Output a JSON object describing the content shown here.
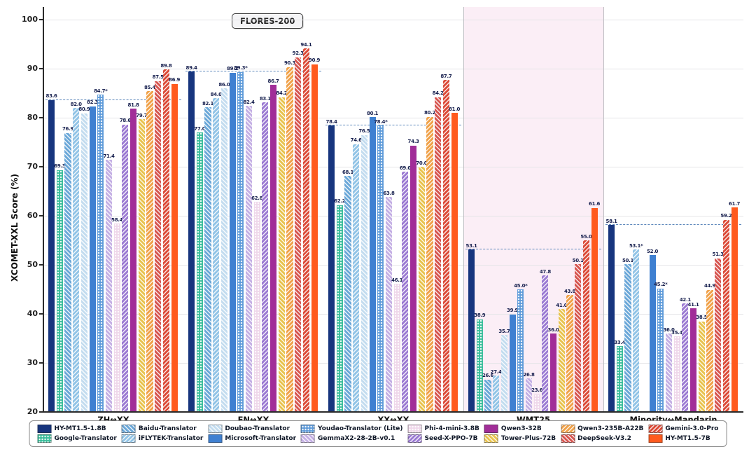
{
  "chart_data": {
    "type": "bar",
    "title": "FLORES-200",
    "ylabel": "XCOMET-XXL Score (%)",
    "ylim": [
      20,
      100
    ],
    "grid": true,
    "legend_position": "bottom",
    "yticks": [
      20,
      30,
      40,
      50,
      60,
      70,
      80,
      90,
      100
    ],
    "categories": [
      "ZH↔XX",
      "EN↔XX",
      "XX↔XX",
      "WMT25",
      "Minority↔Mandarin"
    ],
    "group_backgrounds": [
      "#ffffff",
      "#ffffff",
      "#ffffff",
      "#fbeef6",
      "#ffffff"
    ],
    "reference_values": [
      83.6,
      89.4,
      78.4,
      53.1,
      58.1
    ],
    "series": [
      {
        "name": "HY-MT1.5-1.8B",
        "color": "#17357e",
        "pattern": "solid",
        "values": [
          83.6,
          89.4,
          78.4,
          53.1,
          58.1
        ],
        "labels": [
          "83.6",
          "89.4",
          "78.4",
          "53.1",
          "58.1"
        ]
      },
      {
        "name": "Google-Translator",
        "color": "#3bbd9b",
        "pattern": "dots",
        "values": [
          69.3,
          77.0,
          62.2,
          38.9,
          33.4
        ],
        "labels": [
          "69.3",
          "77.0",
          "62.2",
          "38.9",
          "33.4"
        ]
      },
      {
        "name": "Baidu-Translator",
        "color": "#6aa7d8",
        "pattern": "hatch-f",
        "values": [
          76.9,
          82.1,
          68.1,
          26.6,
          50.1
        ],
        "labels": [
          "76.9",
          "82.1",
          "68.1",
          "26.6",
          "50.1"
        ]
      },
      {
        "name": "iFLYTEK-Translator",
        "color": "#92c4e6",
        "pattern": "hatch-b",
        "values": [
          82.0,
          84.0,
          74.6,
          27.4,
          53.1
        ],
        "labels": [
          "82.0",
          "84.0",
          "74.6",
          "27.4",
          "53.1*"
        ]
      },
      {
        "name": "Doubao-Translator",
        "color": "#c3dcef",
        "pattern": "hatch-f",
        "values": [
          80.9,
          86.0,
          76.5,
          35.7,
          null
        ],
        "labels": [
          "80.9",
          "86.0",
          "76.5",
          "35.7",
          null
        ]
      },
      {
        "name": "Microsoft-Translator",
        "color": "#3f80d1",
        "pattern": "solid",
        "values": [
          82.3,
          89.2,
          80.1,
          39.9,
          52.0
        ],
        "labels": [
          "82.3",
          "89.2",
          "80.1",
          "39.9",
          "52.0"
        ]
      },
      {
        "name": "Youdao-Translator (Lite)",
        "color": "#5f9bd9",
        "pattern": "dots",
        "values": [
          84.7,
          89.3,
          78.4,
          45.0,
          45.2
        ],
        "labels": [
          "84.7*",
          "89.3*",
          "78.4*",
          "45.0*",
          "45.2*"
        ]
      },
      {
        "name": "GemmaX2-28-2B-v0.1",
        "color": "#c4afe4",
        "pattern": "hatch-f",
        "values": [
          71.4,
          82.4,
          63.8,
          26.8,
          36.0
        ],
        "labels": [
          "71.4",
          "82.4",
          "63.8",
          "26.8",
          "36.0"
        ]
      },
      {
        "name": "Phi-4-mini-3.8B",
        "color": "#efd8ea",
        "pattern": "dots",
        "values": [
          58.4,
          62.8,
          46.1,
          23.6,
          35.4
        ],
        "labels": [
          "58.4",
          "62.8",
          "46.1",
          "23.6",
          "35.4"
        ]
      },
      {
        "name": "Seed-X-PPO-7B",
        "color": "#9b7ad2",
        "pattern": "hatch-b",
        "values": [
          78.6,
          83.1,
          69.0,
          47.8,
          42.1
        ],
        "labels": [
          "78.6",
          "83.1",
          "69.0",
          "47.8",
          "42.1"
        ]
      },
      {
        "name": "Qwen3-32B",
        "color": "#a12d98",
        "pattern": "solid",
        "values": [
          81.8,
          86.7,
          74.3,
          36.0,
          41.1
        ],
        "labels": [
          "81.8",
          "86.7",
          "74.3",
          "36.0",
          "41.1"
        ]
      },
      {
        "name": "Tower-Plus-72B",
        "color": "#e8c34e",
        "pattern": "hatch-f",
        "values": [
          79.7,
          84.2,
          70.0,
          41.0,
          38.5
        ],
        "labels": [
          "79.7",
          "84.2",
          "70.0",
          "41.0",
          "38.5"
        ]
      },
      {
        "name": "Qwen3-235B-A22B",
        "color": "#f0a148",
        "pattern": "hatch-b",
        "values": [
          85.4,
          90.3,
          80.2,
          43.8,
          44.9
        ],
        "labels": [
          "85.4",
          "90.3",
          "80.2",
          "43.8",
          "44.9"
        ]
      },
      {
        "name": "DeepSeek-V3.2",
        "color": "#d75550",
        "pattern": "hatch-f",
        "values": [
          87.5,
          92.3,
          84.2,
          50.1,
          51.3
        ],
        "labels": [
          "87.5",
          "92.3",
          "84.2",
          "50.1",
          "51.3"
        ]
      },
      {
        "name": "Gemini-3.0-Pro",
        "color": "#db4a37",
        "pattern": "hatch-b",
        "values": [
          89.8,
          94.1,
          87.7,
          55.0,
          59.2
        ],
        "labels": [
          "89.8",
          "94.1",
          "87.7",
          "55.0",
          "59.2"
        ]
      },
      {
        "name": "HY-MT1.5-7B",
        "color": "#ff5a1e",
        "pattern": "solid",
        "values": [
          86.9,
          90.9,
          81.0,
          61.6,
          61.7
        ],
        "labels": [
          "86.9",
          "90.9",
          "81.0",
          "61.6",
          "61.7"
        ]
      }
    ]
  }
}
